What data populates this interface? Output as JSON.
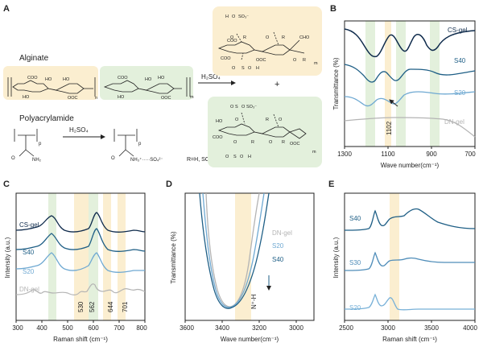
{
  "panels": {
    "A": {
      "letter": "A",
      "alginate_label": "Alginate",
      "pam_label": "Polyacrylamide",
      "reagent": "H₂SO₄",
      "plus": "+",
      "r_def": "R=H, SO₃⁻",
      "colors": {
        "yellow": "#fbeed0",
        "green": "#e3f0dc"
      }
    },
    "B": {
      "letter": "B",
      "series": [
        "CS-gel",
        "S40",
        "S20",
        "DN-gel"
      ],
      "annotation": "1102",
      "ylabel": "Transmittance (%)",
      "xlabel": "Wave number(cm⁻¹)",
      "xticks": [
        "1300",
        "1100",
        "900",
        "700"
      ],
      "chart_data": {
        "type": "line",
        "xlim": [
          1300,
          700
        ],
        "x_reversed": true,
        "bands_cm": [
          1200,
          1100,
          1050,
          880
        ],
        "series": [
          {
            "name": "CS-gel",
            "color": "#0f2b4c",
            "dips_cm": [
              1150,
              1030,
              900
            ]
          },
          {
            "name": "S40",
            "color": "#1f5f86",
            "dips_cm": [
              1200,
              1100,
              1030
            ]
          },
          {
            "name": "S20",
            "color": "#6fa9d2",
            "dips_cm": [
              1120,
              1040
            ]
          },
          {
            "name": "DN-gel",
            "color": "#b4b4b4",
            "dips_cm": []
          }
        ]
      }
    },
    "C": {
      "letter": "C",
      "series": [
        "CS-gel",
        "S40",
        "S20",
        "DN-gel"
      ],
      "annotations": [
        "530",
        "562",
        "644",
        "701"
      ],
      "ylabel": "Intensity (a.u.)",
      "xlabel": "Raman shift (cm⁻¹)",
      "xticks": [
        "300",
        "400",
        "500",
        "600",
        "700",
        "800"
      ],
      "chart_data": {
        "type": "line",
        "xlim": [
          300,
          800
        ],
        "bands_green_cm": [
          425,
          590
        ],
        "bands_yellow_cm": [
          530,
          562,
          644,
          701
        ],
        "series": [
          {
            "name": "CS-gel",
            "color": "#0f2b4c",
            "peaks_cm": [
              425,
              590
            ]
          },
          {
            "name": "S40",
            "color": "#1f5f86",
            "peaks_cm": [
              425,
              590
            ]
          },
          {
            "name": "S20",
            "color": "#6fa9d2",
            "peaks_cm": [
              425,
              590
            ]
          },
          {
            "name": "DN-gel",
            "color": "#b4b4b4",
            "peaks_cm": [
              600,
              700
            ]
          }
        ]
      }
    },
    "D": {
      "letter": "D",
      "series": [
        "DN-gel",
        "S20",
        "S40"
      ],
      "annotation": "N⁺-H",
      "arrow": "↓",
      "ylabel": "Transmittance (%)",
      "xlabel": "Wave number(cm⁻¹)",
      "xticks": [
        "3600",
        "3400",
        "3200",
        "3000"
      ],
      "chart_data": {
        "type": "line",
        "xlim": [
          3600,
          2900
        ],
        "x_reversed": true,
        "band_cm": [
          3260,
          3180
        ],
        "series": [
          {
            "name": "DN-gel",
            "color": "#b4b4b4",
            "min_cm": 3340
          },
          {
            "name": "S20",
            "color": "#6fa9d2",
            "min_cm": 3335
          },
          {
            "name": "S40",
            "color": "#1f5f86",
            "min_cm": 3330
          }
        ]
      }
    },
    "E": {
      "letter": "E",
      "series": [
        "S40",
        "S30",
        "S20"
      ],
      "ylabel": "Intensity (a.u.)",
      "xlabel": "Raman shift (cm⁻¹)",
      "xticks": [
        "2500",
        "3000",
        "3500",
        "4000"
      ],
      "chart_data": {
        "type": "line",
        "xlim": [
          2500,
          4000
        ],
        "band_cm": [
          2980,
          3130
        ],
        "series": [
          {
            "name": "S40",
            "color": "#1f5f86",
            "peaks_cm": [
              2880,
              2940,
              3200,
              3430
            ]
          },
          {
            "name": "S30",
            "color": "#4f8db9",
            "peaks_cm": [
              2880,
              2940,
              3200,
              3430
            ]
          },
          {
            "name": "S20",
            "color": "#78b1d8",
            "peaks_cm": [
              2880,
              2940,
              3200,
              3430
            ]
          }
        ]
      }
    }
  }
}
